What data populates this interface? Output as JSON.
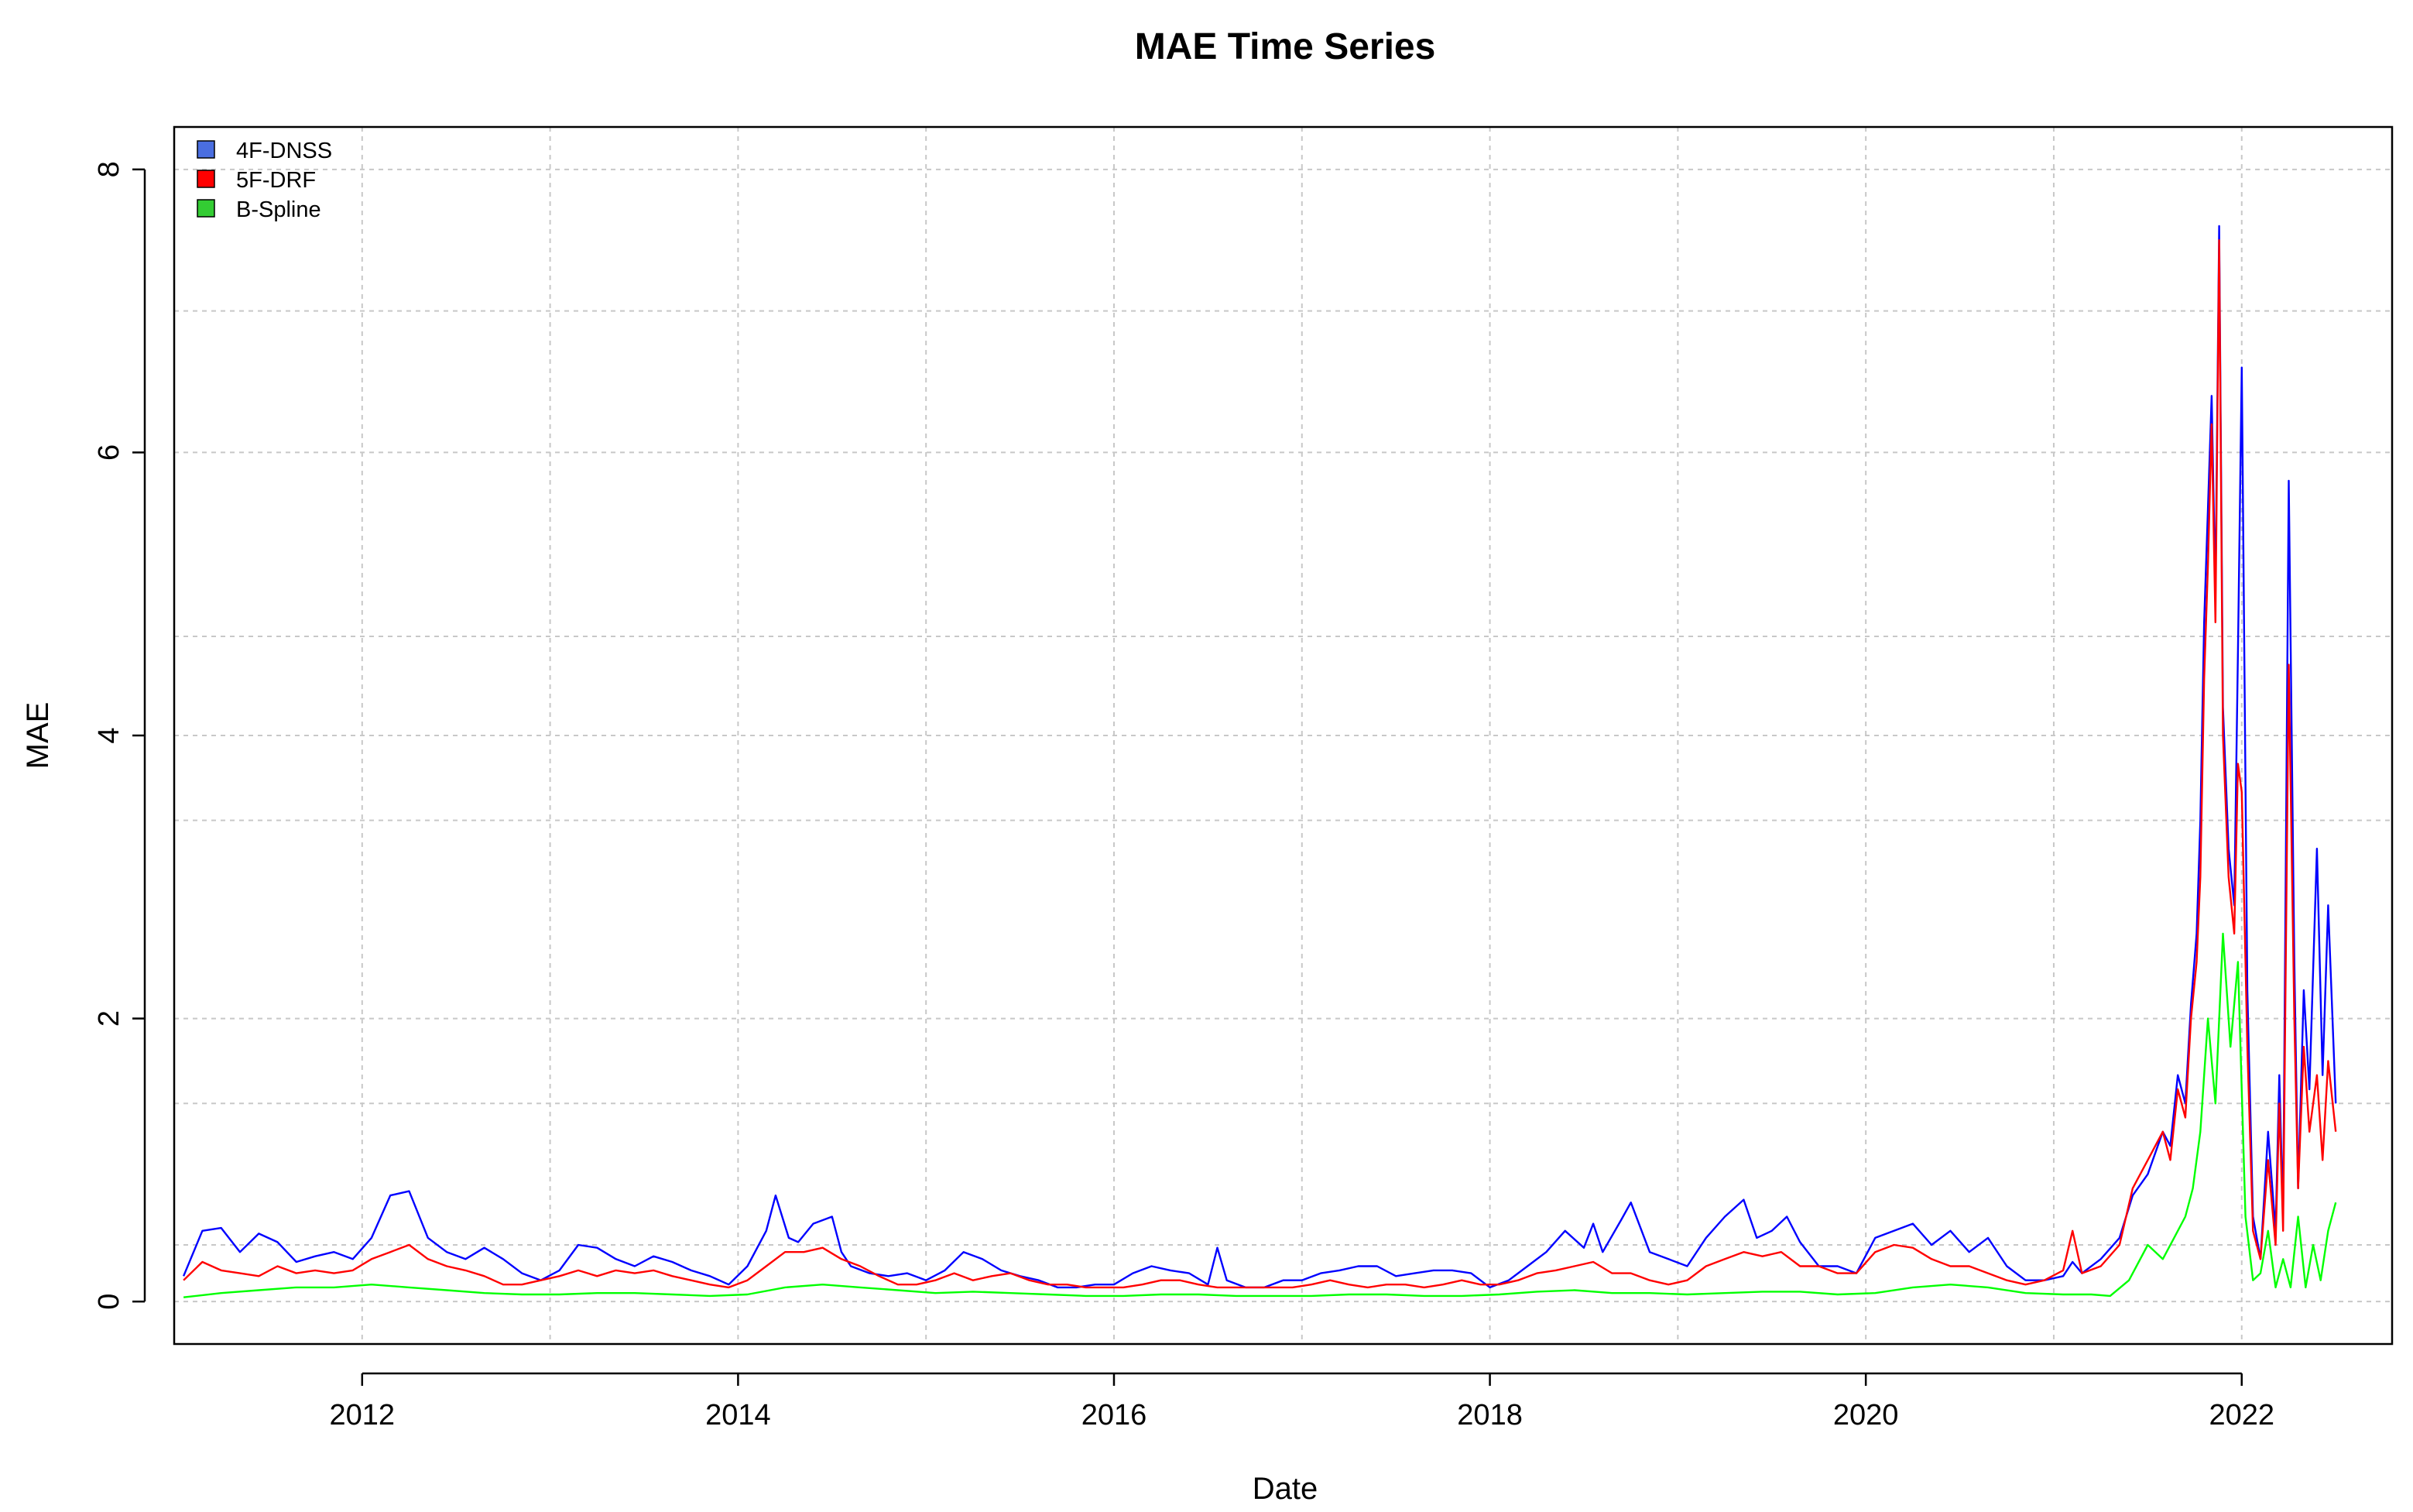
{
  "chart_data": {
    "type": "line",
    "title": "MAE Time Series",
    "xlabel": "Date",
    "ylabel": "MAE",
    "xlim": [
      2011.0,
      2022.8
    ],
    "ylim": [
      -0.3,
      8.3
    ],
    "x_ticks": [
      2012,
      2014,
      2016,
      2018,
      2020,
      2022
    ],
    "x_tick_labels": [
      "2012",
      "2014",
      "2016",
      "2018",
      "2020",
      "2022"
    ],
    "y_ticks": [
      0,
      2,
      4,
      6,
      8
    ],
    "y_tick_labels": [
      "0",
      "2",
      "4",
      "6",
      "8"
    ],
    "y_minor_grid": [
      0.4,
      1.4,
      3.4,
      4.7,
      7.0
    ],
    "grid": true,
    "legend_position": "top-left",
    "series": [
      {
        "name": "4F-DNSS",
        "color": "#0000ff",
        "legend_color": "#4a6ee0",
        "x": [
          2011.05,
          2011.15,
          2011.25,
          2011.35,
          2011.45,
          2011.55,
          2011.65,
          2011.75,
          2011.85,
          2011.95,
          2012.05,
          2012.15,
          2012.25,
          2012.35,
          2012.45,
          2012.55,
          2012.65,
          2012.75,
          2012.85,
          2012.95,
          2013.05,
          2013.15,
          2013.25,
          2013.35,
          2013.45,
          2013.55,
          2013.65,
          2013.75,
          2013.85,
          2013.95,
          2014.05,
          2014.15,
          2014.2,
          2014.27,
          2014.32,
          2014.4,
          2014.5,
          2014.55,
          2014.6,
          2014.7,
          2014.8,
          2014.9,
          2015.0,
          2015.1,
          2015.2,
          2015.3,
          2015.4,
          2015.5,
          2015.6,
          2015.7,
          2015.8,
          2015.9,
          2016.0,
          2016.1,
          2016.2,
          2016.3,
          2016.4,
          2016.5,
          2016.55,
          2016.6,
          2016.7,
          2016.8,
          2016.9,
          2017.0,
          2017.1,
          2017.2,
          2017.3,
          2017.4,
          2017.5,
          2017.6,
          2017.7,
          2017.8,
          2017.9,
          2018.0,
          2018.1,
          2018.2,
          2018.3,
          2018.4,
          2018.5,
          2018.55,
          2018.6,
          2018.7,
          2018.75,
          2018.85,
          2018.95,
          2019.05,
          2019.15,
          2019.25,
          2019.35,
          2019.42,
          2019.5,
          2019.58,
          2019.65,
          2019.75,
          2019.85,
          2019.95,
          2020.05,
          2020.15,
          2020.25,
          2020.35,
          2020.45,
          2020.55,
          2020.65,
          2020.75,
          2020.85,
          2020.95,
          2021.05,
          2021.1,
          2021.15,
          2021.25,
          2021.35,
          2021.42,
          2021.5,
          2021.58,
          2021.62,
          2021.66,
          2021.7,
          2021.73,
          2021.76,
          2021.78,
          2021.8,
          2021.82,
          2021.84,
          2021.86,
          2021.88,
          2021.9,
          2021.93,
          2021.96,
          2021.98,
          2022.0,
          2022.03,
          2022.06,
          2022.1,
          2022.14,
          2022.18,
          2022.2,
          2022.22,
          2022.25,
          2022.28,
          2022.3,
          2022.33,
          2022.36,
          2022.4,
          2022.43,
          2022.46,
          2022.5
        ],
        "y": [
          0.18,
          0.5,
          0.52,
          0.35,
          0.48,
          0.42,
          0.28,
          0.32,
          0.35,
          0.3,
          0.45,
          0.75,
          0.78,
          0.45,
          0.35,
          0.3,
          0.38,
          0.3,
          0.2,
          0.15,
          0.22,
          0.4,
          0.38,
          0.3,
          0.25,
          0.32,
          0.28,
          0.22,
          0.18,
          0.12,
          0.25,
          0.5,
          0.75,
          0.45,
          0.42,
          0.55,
          0.6,
          0.35,
          0.25,
          0.2,
          0.18,
          0.2,
          0.15,
          0.22,
          0.35,
          0.3,
          0.22,
          0.18,
          0.15,
          0.1,
          0.1,
          0.12,
          0.12,
          0.2,
          0.25,
          0.22,
          0.2,
          0.12,
          0.38,
          0.15,
          0.1,
          0.1,
          0.15,
          0.15,
          0.2,
          0.22,
          0.25,
          0.25,
          0.18,
          0.2,
          0.22,
          0.22,
          0.2,
          0.1,
          0.15,
          0.25,
          0.35,
          0.5,
          0.38,
          0.55,
          0.35,
          0.58,
          0.7,
          0.35,
          0.3,
          0.25,
          0.45,
          0.6,
          0.72,
          0.45,
          0.5,
          0.6,
          0.42,
          0.25,
          0.25,
          0.2,
          0.45,
          0.5,
          0.55,
          0.4,
          0.5,
          0.35,
          0.45,
          0.25,
          0.15,
          0.15,
          0.18,
          0.28,
          0.2,
          0.3,
          0.45,
          0.75,
          0.9,
          1.2,
          1.1,
          1.6,
          1.4,
          2.1,
          2.6,
          3.4,
          4.8,
          5.6,
          6.4,
          5.0,
          7.6,
          4.2,
          3.2,
          2.8,
          4.6,
          6.6,
          2.2,
          0.6,
          0.3,
          1.2,
          0.5,
          1.6,
          0.6,
          5.8,
          2.4,
          0.8,
          2.2,
          1.5,
          3.2,
          1.6,
          2.8,
          1.4
        ]
      },
      {
        "name": "5F-DRF",
        "color": "#ff0000",
        "legend_color": "#ff0000",
        "x": [
          2011.05,
          2011.15,
          2011.25,
          2011.35,
          2011.45,
          2011.55,
          2011.65,
          2011.75,
          2011.85,
          2011.95,
          2012.05,
          2012.15,
          2012.25,
          2012.35,
          2012.45,
          2012.55,
          2012.65,
          2012.75,
          2012.85,
          2012.95,
          2013.05,
          2013.15,
          2013.25,
          2013.35,
          2013.45,
          2013.55,
          2013.65,
          2013.75,
          2013.85,
          2013.95,
          2014.05,
          2014.15,
          2014.25,
          2014.35,
          2014.45,
          2014.55,
          2014.65,
          2014.75,
          2014.85,
          2014.95,
          2015.05,
          2015.15,
          2015.25,
          2015.35,
          2015.45,
          2015.55,
          2015.65,
          2015.75,
          2015.85,
          2015.95,
          2016.05,
          2016.15,
          2016.25,
          2016.35,
          2016.45,
          2016.55,
          2016.65,
          2016.75,
          2016.85,
          2016.95,
          2017.05,
          2017.15,
          2017.25,
          2017.35,
          2017.45,
          2017.55,
          2017.65,
          2017.75,
          2017.85,
          2017.95,
          2018.05,
          2018.15,
          2018.25,
          2018.35,
          2018.45,
          2018.55,
          2018.65,
          2018.75,
          2018.85,
          2018.95,
          2019.05,
          2019.15,
          2019.25,
          2019.35,
          2019.45,
          2019.55,
          2019.65,
          2019.75,
          2019.85,
          2019.95,
          2020.05,
          2020.15,
          2020.25,
          2020.35,
          2020.45,
          2020.55,
          2020.65,
          2020.75,
          2020.85,
          2020.95,
          2021.05,
          2021.1,
          2021.15,
          2021.25,
          2021.35,
          2021.42,
          2021.5,
          2021.58,
          2021.62,
          2021.66,
          2021.7,
          2021.73,
          2021.76,
          2021.78,
          2021.8,
          2021.82,
          2021.84,
          2021.86,
          2021.88,
          2021.9,
          2021.93,
          2021.96,
          2021.98,
          2022.0,
          2022.03,
          2022.06,
          2022.1,
          2022.14,
          2022.18,
          2022.2,
          2022.22,
          2022.25,
          2022.28,
          2022.3,
          2022.33,
          2022.36,
          2022.4,
          2022.43,
          2022.46,
          2022.5
        ],
        "y": [
          0.15,
          0.28,
          0.22,
          0.2,
          0.18,
          0.25,
          0.2,
          0.22,
          0.2,
          0.22,
          0.3,
          0.35,
          0.4,
          0.3,
          0.25,
          0.22,
          0.18,
          0.12,
          0.12,
          0.15,
          0.18,
          0.22,
          0.18,
          0.22,
          0.2,
          0.22,
          0.18,
          0.15,
          0.12,
          0.1,
          0.15,
          0.25,
          0.35,
          0.35,
          0.38,
          0.3,
          0.25,
          0.18,
          0.12,
          0.12,
          0.15,
          0.2,
          0.15,
          0.18,
          0.2,
          0.15,
          0.12,
          0.12,
          0.1,
          0.1,
          0.1,
          0.12,
          0.15,
          0.15,
          0.12,
          0.1,
          0.1,
          0.1,
          0.1,
          0.1,
          0.12,
          0.15,
          0.12,
          0.1,
          0.12,
          0.12,
          0.1,
          0.12,
          0.15,
          0.12,
          0.12,
          0.15,
          0.2,
          0.22,
          0.25,
          0.28,
          0.2,
          0.2,
          0.15,
          0.12,
          0.15,
          0.25,
          0.3,
          0.35,
          0.32,
          0.35,
          0.25,
          0.25,
          0.2,
          0.2,
          0.35,
          0.4,
          0.38,
          0.3,
          0.25,
          0.25,
          0.2,
          0.15,
          0.12,
          0.15,
          0.22,
          0.5,
          0.2,
          0.25,
          0.4,
          0.8,
          1.0,
          1.2,
          1.0,
          1.5,
          1.3,
          2.0,
          2.4,
          3.0,
          4.4,
          5.2,
          6.2,
          4.8,
          7.5,
          4.0,
          3.0,
          2.6,
          3.8,
          3.6,
          1.8,
          0.5,
          0.3,
          1.0,
          0.4,
          1.4,
          0.5,
          4.5,
          2.0,
          0.8,
          1.8,
          1.2,
          1.6,
          1.0,
          1.7,
          1.2
        ]
      },
      {
        "name": "B-Spline",
        "color": "#00ff00",
        "legend_color": "#33cc33",
        "x": [
          2011.05,
          2011.25,
          2011.45,
          2011.65,
          2011.85,
          2012.05,
          2012.25,
          2012.45,
          2012.65,
          2012.85,
          2013.05,
          2013.25,
          2013.45,
          2013.65,
          2013.85,
          2014.05,
          2014.25,
          2014.45,
          2014.65,
          2014.85,
          2015.05,
          2015.25,
          2015.45,
          2015.65,
          2015.85,
          2016.05,
          2016.25,
          2016.45,
          2016.65,
          2016.85,
          2017.05,
          2017.25,
          2017.45,
          2017.65,
          2017.85,
          2018.05,
          2018.25,
          2018.45,
          2018.65,
          2018.85,
          2019.05,
          2019.25,
          2019.45,
          2019.65,
          2019.85,
          2020.05,
          2020.25,
          2020.45,
          2020.65,
          2020.85,
          2021.05,
          2021.2,
          2021.3,
          2021.4,
          2021.5,
          2021.58,
          2021.64,
          2021.7,
          2021.74,
          2021.78,
          2021.82,
          2021.86,
          2021.9,
          2021.94,
          2021.98,
          2022.02,
          2022.06,
          2022.1,
          2022.14,
          2022.18,
          2022.22,
          2022.26,
          2022.3,
          2022.34,
          2022.38,
          2022.42,
          2022.46,
          2022.5
        ],
        "y": [
          0.03,
          0.06,
          0.08,
          0.1,
          0.1,
          0.12,
          0.1,
          0.08,
          0.06,
          0.05,
          0.05,
          0.06,
          0.06,
          0.05,
          0.04,
          0.05,
          0.1,
          0.12,
          0.1,
          0.08,
          0.06,
          0.07,
          0.06,
          0.05,
          0.04,
          0.04,
          0.05,
          0.05,
          0.04,
          0.04,
          0.04,
          0.05,
          0.05,
          0.04,
          0.04,
          0.05,
          0.07,
          0.08,
          0.06,
          0.06,
          0.05,
          0.06,
          0.07,
          0.07,
          0.05,
          0.06,
          0.1,
          0.12,
          0.1,
          0.06,
          0.05,
          0.05,
          0.04,
          0.15,
          0.4,
          0.3,
          0.45,
          0.6,
          0.8,
          1.2,
          2.0,
          1.4,
          2.6,
          1.8,
          2.4,
          0.6,
          0.15,
          0.2,
          0.5,
          0.1,
          0.3,
          0.1,
          0.6,
          0.1,
          0.4,
          0.15,
          0.5,
          0.7
        ]
      }
    ]
  }
}
